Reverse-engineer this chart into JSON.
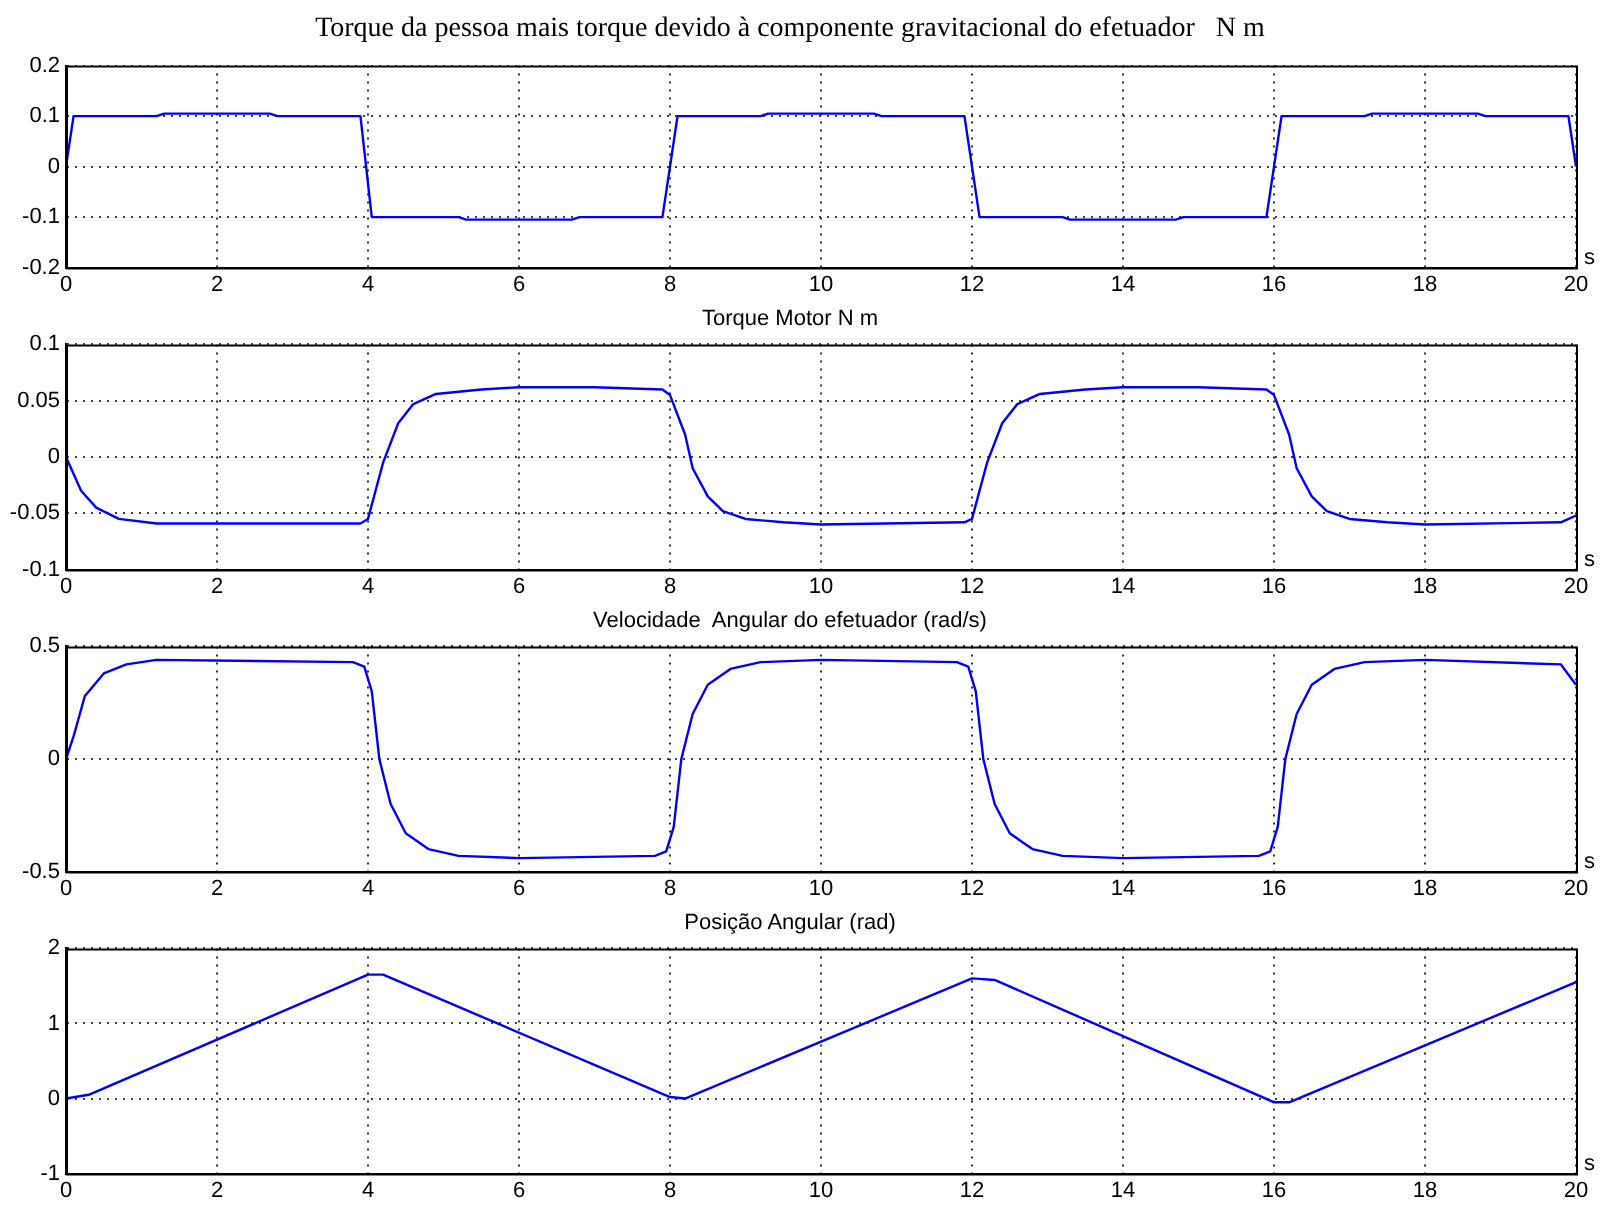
{
  "chart_data": [
    {
      "type": "line",
      "title": "Torque da pessoa mais torque devido à componente gravitacional do efetuador   N m",
      "xlabel": "s",
      "grid": true,
      "marker": "none",
      "line_style": "solid",
      "xlim": [
        0,
        20
      ],
      "xticks": [
        0,
        2,
        4,
        6,
        8,
        10,
        12,
        14,
        16,
        18,
        20
      ],
      "ylim": [
        -0.2,
        0.2
      ],
      "yticks": [
        -0.2,
        -0.1,
        0,
        0.1,
        0.2
      ],
      "series": [
        {
          "color": "#0000ff",
          "x": [
            0,
            0.1,
            1.2,
            1.3,
            2.7,
            2.8,
            3.9,
            4.05,
            5.2,
            5.3,
            6.7,
            6.8,
            7.9,
            8.1,
            9.2,
            9.3,
            10.7,
            10.8,
            11.9,
            12.1,
            13.2,
            13.3,
            14.7,
            14.8,
            15.9,
            16.1,
            17.2,
            17.3,
            18.7,
            18.8,
            19.9,
            20
          ],
          "values": [
            0,
            0.1,
            0.1,
            0.105,
            0.105,
            0.1,
            0.1,
            -0.1,
            -0.1,
            -0.105,
            -0.105,
            -0.1,
            -0.1,
            0.1,
            0.1,
            0.105,
            0.105,
            0.1,
            0.1,
            -0.1,
            -0.1,
            -0.105,
            -0.105,
            -0.1,
            -0.1,
            0.1,
            0.1,
            0.105,
            0.105,
            0.1,
            0.1,
            0
          ]
        }
      ]
    },
    {
      "type": "line",
      "title": "Torque Motor N m",
      "xlabel": "s",
      "grid": true,
      "marker": "none",
      "line_style": "solid",
      "xlim": [
        0,
        20
      ],
      "xticks": [
        0,
        2,
        4,
        6,
        8,
        10,
        12,
        14,
        16,
        18,
        20
      ],
      "ylim": [
        -0.1,
        0.1
      ],
      "yticks": [
        -0.1,
        -0.05,
        0,
        0.05,
        0.1
      ],
      "series": [
        {
          "color": "#0000ff",
          "x": [
            0,
            0.2,
            0.4,
            0.7,
            1.2,
            3.9,
            4.0,
            4.1,
            4.2,
            4.4,
            4.6,
            4.9,
            5.5,
            6,
            7,
            7.9,
            8.0,
            8.2,
            8.3,
            8.5,
            8.7,
            9,
            9.5,
            10,
            11.9,
            12.0,
            12.1,
            12.2,
            12.4,
            12.6,
            12.9,
            13.5,
            14,
            15,
            15.9,
            16.0,
            16.2,
            16.3,
            16.5,
            16.7,
            17,
            17.5,
            18,
            19.8,
            20
          ],
          "values": [
            0,
            -0.03,
            -0.045,
            -0.055,
            -0.059,
            -0.059,
            -0.055,
            -0.03,
            -0.005,
            0.03,
            0.047,
            0.056,
            0.06,
            0.062,
            0.062,
            0.06,
            0.055,
            0.02,
            -0.01,
            -0.035,
            -0.048,
            -0.055,
            -0.058,
            -0.06,
            -0.058,
            -0.055,
            -0.03,
            -0.005,
            0.03,
            0.047,
            0.056,
            0.06,
            0.062,
            0.062,
            0.06,
            0.055,
            0.02,
            -0.01,
            -0.035,
            -0.048,
            -0.055,
            -0.058,
            -0.06,
            -0.058,
            -0.052
          ]
        }
      ]
    },
    {
      "type": "line",
      "title": "Velocidade  Angular do efetuador (rad/s)",
      "xlabel": "s",
      "grid": true,
      "marker": "none",
      "line_style": "solid",
      "xlim": [
        0,
        20
      ],
      "xticks": [
        0,
        2,
        4,
        6,
        8,
        10,
        12,
        14,
        16,
        18,
        20
      ],
      "ylim": [
        -0.5,
        0.5
      ],
      "yticks": [
        -0.5,
        0,
        0.5
      ],
      "series": [
        {
          "color": "#0000ff",
          "x": [
            0,
            0.1,
            0.25,
            0.5,
            0.8,
            1.2,
            3.8,
            3.95,
            4.05,
            4.15,
            4.3,
            4.5,
            4.8,
            5.2,
            6,
            7.8,
            7.95,
            8.05,
            8.15,
            8.3,
            8.5,
            8.8,
            9.2,
            10,
            11.8,
            11.95,
            12.05,
            12.15,
            12.3,
            12.5,
            12.8,
            13.2,
            14,
            15.8,
            15.95,
            16.05,
            16.15,
            16.3,
            16.5,
            16.8,
            17.2,
            18,
            19.8,
            20
          ],
          "values": [
            0,
            0.1,
            0.28,
            0.38,
            0.42,
            0.44,
            0.43,
            0.41,
            0.3,
            0,
            -0.2,
            -0.33,
            -0.4,
            -0.43,
            -0.44,
            -0.43,
            -0.41,
            -0.3,
            0,
            0.2,
            0.33,
            0.4,
            0.43,
            0.44,
            0.43,
            0.41,
            0.3,
            0,
            -0.2,
            -0.33,
            -0.4,
            -0.43,
            -0.44,
            -0.43,
            -0.41,
            -0.3,
            0,
            0.2,
            0.33,
            0.4,
            0.43,
            0.44,
            0.42,
            0.33
          ]
        }
      ]
    },
    {
      "type": "line",
      "title": "Posição Angular (rad)",
      "xlabel": "s",
      "grid": true,
      "marker": "none",
      "line_style": "solid",
      "xlim": [
        0,
        20
      ],
      "xticks": [
        0,
        2,
        4,
        6,
        8,
        10,
        12,
        14,
        16,
        18,
        20
      ],
      "ylim": [
        -1,
        2
      ],
      "yticks": [
        -1,
        0,
        1,
        2
      ],
      "series": [
        {
          "color": "#0000ff",
          "x": [
            0,
            0.3,
            4.0,
            4.2,
            8.0,
            8.2,
            12.0,
            12.3,
            16.0,
            16.2,
            20
          ],
          "values": [
            0,
            0.05,
            1.65,
            1.65,
            0.02,
            0,
            1.6,
            1.58,
            -0.05,
            -0.05,
            1.55
          ]
        }
      ]
    }
  ]
}
